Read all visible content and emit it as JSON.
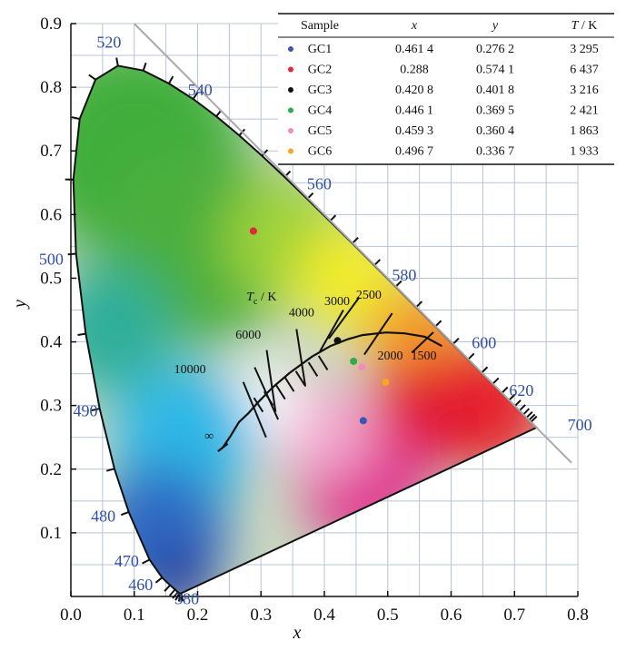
{
  "chart_data": {
    "type": "scatter",
    "xlabel": "x",
    "ylabel": "y",
    "xlim": [
      0.0,
      0.8
    ],
    "ylim": [
      0.0,
      0.9
    ],
    "x_ticks": [
      "0.0",
      "0.1",
      "0.2",
      "0.3",
      "0.4",
      "0.5",
      "0.6",
      "0.7",
      "0.8"
    ],
    "y_ticks": [
      "0.1",
      "0.2",
      "0.3",
      "0.4",
      "0.5",
      "0.6",
      "0.7",
      "0.8",
      "0.9"
    ],
    "grid": true,
    "wavelength_labels": [
      "380",
      "460",
      "470",
      "480",
      "490",
      "500",
      "520",
      "540",
      "560",
      "580",
      "600",
      "620",
      "700"
    ],
    "cct_title": "T",
    "cct_sub": "c",
    "cct_unit": " / K",
    "cct_labels": [
      "∞",
      "10000",
      "6000",
      "4000",
      "3000",
      "2500",
      "2000",
      "1500"
    ],
    "table": {
      "headers": [
        "Sample",
        "x",
        "y",
        "T",
        " / K"
      ],
      "rows": [
        {
          "name": "GC1",
          "x": "0.461 4",
          "y": "0.276 2",
          "t": "3 295",
          "color": "#3a55b4"
        },
        {
          "name": "GC2",
          "x": "0.288",
          "y": "0.574 1",
          "t": "6 437",
          "color": "#e0283a"
        },
        {
          "name": "GC3",
          "x": "0.420 8",
          "y": "0.401 8",
          "t": "3 216",
          "color": "#111111"
        },
        {
          "name": "GC4",
          "x": "0.446 1",
          "y": "0.369 5",
          "t": "2 421",
          "color": "#2eab4d"
        },
        {
          "name": "GC5",
          "x": "0.459 3",
          "y": "0.360 4",
          "t": "1 863",
          "color": "#f08cc0"
        },
        {
          "name": "GC6",
          "x": "0.496 7",
          "y": "0.336 7",
          "t": "1 933",
          "color": "#f5a623"
        }
      ]
    },
    "points": [
      {
        "name": "GC1",
        "x": 0.4614,
        "y": 0.2762,
        "color": "#3a55b4"
      },
      {
        "name": "GC2",
        "x": 0.288,
        "y": 0.5741,
        "color": "#e0283a"
      },
      {
        "name": "GC3",
        "x": 0.4208,
        "y": 0.4018,
        "color": "#111111"
      },
      {
        "name": "GC4",
        "x": 0.4461,
        "y": 0.3695,
        "color": "#2eab4d"
      },
      {
        "name": "GC5",
        "x": 0.4593,
        "y": 0.3604,
        "color": "#f08cc0"
      },
      {
        "name": "GC6",
        "x": 0.4967,
        "y": 0.3367,
        "color": "#f5a623"
      }
    ]
  }
}
